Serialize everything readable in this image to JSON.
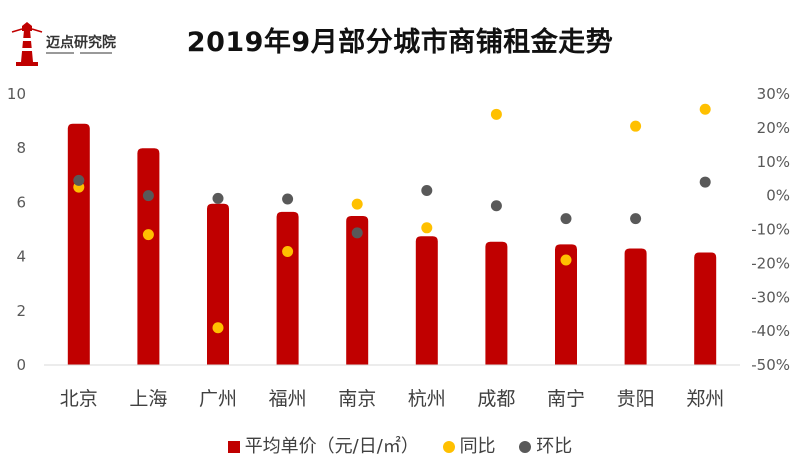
{
  "logo": {
    "text": "迈点研究院"
  },
  "colors": {
    "bar": "#C00000",
    "yoy": "#FFC000",
    "mom": "#595959"
  },
  "chart_data": {
    "type": "bar",
    "title": "2019年9月部分城市商铺租金走势",
    "categories": [
      "北京",
      "上海",
      "广州",
      "福州",
      "南京",
      "杭州",
      "成都",
      "南宁",
      "贵阳",
      "郑州"
    ],
    "y_left": {
      "ylim": [
        0,
        10
      ],
      "ticks": [
        "0",
        "2",
        "4",
        "6",
        "8",
        "10"
      ]
    },
    "y_right": {
      "ylim": [
        -50,
        30
      ],
      "ticks": [
        "30%",
        "20%",
        "10%",
        "0%",
        "-10%",
        "-20%",
        "-30%",
        "-40%",
        "-50%"
      ]
    },
    "series": [
      {
        "name": "平均单价（元/日/㎡）",
        "type": "bar",
        "axis": "left",
        "values": [
          8.9,
          8.0,
          5.95,
          5.65,
          5.5,
          4.75,
          4.55,
          4.45,
          4.3,
          4.15
        ]
      },
      {
        "name": "同比",
        "type": "scatter",
        "axis": "right",
        "values": [
          2.5,
          -11.5,
          -39,
          -16.5,
          -2.5,
          -9.5,
          24,
          -19,
          20.5,
          25.5
        ]
      },
      {
        "name": "环比",
        "type": "scatter",
        "axis": "right",
        "values": [
          4.5,
          0,
          -0.8,
          -1,
          -11,
          1.5,
          -3,
          -6.8,
          -6.8,
          4
        ]
      }
    ],
    "legend": "bottom",
    "grid": false
  }
}
